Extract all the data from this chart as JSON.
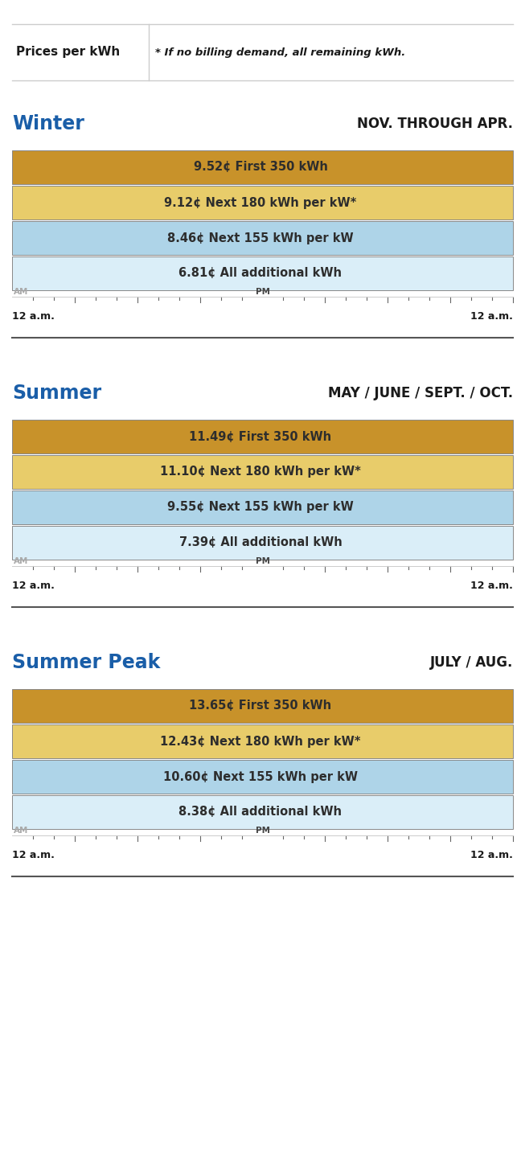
{
  "header_left": "Prices per kWh",
  "header_right": "* If no billing demand, all remaining kWh.",
  "sections": [
    {
      "title": "Winter",
      "subtitle": "NOV. THROUGH APR.",
      "title_color": "#1a5ea8",
      "subtitle_color": "#1a1a1a",
      "bars": [
        {
          "label": "9.52¢ First 350 kWh",
          "color": "#c8922a"
        },
        {
          "label": "9.12¢ Next 180 kWh per kW*",
          "color": "#e8cc6a"
        },
        {
          "label": "8.46¢ Next 155 kWh per kW",
          "color": "#aed4e8"
        },
        {
          "label": "6.81¢ All additional kWh",
          "color": "#daeef8"
        }
      ]
    },
    {
      "title": "Summer",
      "subtitle": "MAY / JUNE / SEPT. / OCT.",
      "title_color": "#1a5ea8",
      "subtitle_color": "#1a1a1a",
      "bars": [
        {
          "label": "11.49¢ First 350 kWh",
          "color": "#c8922a"
        },
        {
          "label": "11.10¢ Next 180 kWh per kW*",
          "color": "#e8cc6a"
        },
        {
          "label": "9.55¢ Next 155 kWh per kW",
          "color": "#aed4e8"
        },
        {
          "label": "7.39¢ All additional kWh",
          "color": "#daeef8"
        }
      ]
    },
    {
      "title": "Summer Peak",
      "subtitle": "JULY / AUG.",
      "title_color": "#1a5ea8",
      "subtitle_color": "#1a1a1a",
      "bars": [
        {
          "label": "13.65¢ First 350 kWh",
          "color": "#c8922a"
        },
        {
          "label": "12.43¢ Next 180 kWh per kW*",
          "color": "#e8cc6a"
        },
        {
          "label": "10.60¢ Next 155 kWh per kW",
          "color": "#aed4e8"
        },
        {
          "label": "8.38¢ All additional kWh",
          "color": "#daeef8"
        }
      ]
    }
  ],
  "bg_color": "#ffffff",
  "bar_text_color": "#2d2d2d",
  "border_color": "#cccccc",
  "separator_color": "#555555",
  "tick_color": "#666666",
  "am_color": "#aaaaaa",
  "pm_color": "#444444",
  "label_12am_color": "#1a1a1a",
  "fig_width": 6.48,
  "fig_height": 14.29,
  "dpi": 100
}
